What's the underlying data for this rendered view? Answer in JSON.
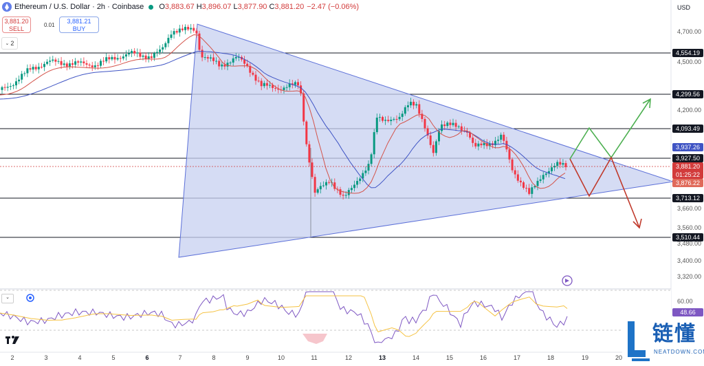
{
  "header": {
    "symbol": "Ethereum / U.S. Dollar · 2h · Coinbase",
    "o_label": "O",
    "o_value": "3,883.67",
    "h_label": "H",
    "h_value": "3,896.07",
    "l_label": "L",
    "l_value": "3,877.90",
    "c_label": "C",
    "c_value": "3,881.20",
    "change": "−2.47 (−0.06%)",
    "status_color": "#089981"
  },
  "trade": {
    "sell_price": "3,881.20",
    "sell_label": "SELL",
    "spread": "0.01",
    "buy_price": "3,881.21",
    "buy_label": "BUY"
  },
  "toolbar": {
    "collapse_count": "2"
  },
  "price_axis": {
    "currency": "USD",
    "labels": [
      "4,700.00",
      "4,500.00",
      "4,200.00",
      "3,660.00",
      "3,560.00",
      "3,480.00",
      "3,400.00",
      "3,320.00"
    ],
    "hline_badges": [
      "4,554.19",
      "4,299.56",
      "4,093.49",
      "3,927.50",
      "3,713.12",
      "3,510.44"
    ],
    "ma_badge": "3,937.26",
    "last_price": "3,881.20",
    "countdown": "01:25:22",
    "other_badge": "3,876.22"
  },
  "rsi": {
    "level_label": "60.00",
    "value": "48.66"
  },
  "time_axis": {
    "labels": [
      "2",
      "3",
      "4",
      "5",
      "6",
      "7",
      "8",
      "9",
      "10",
      "11",
      "12",
      "13",
      "14",
      "15",
      "16",
      "17",
      "18",
      "19",
      "20"
    ]
  },
  "colors": {
    "up": "#089981",
    "down": "#f23645",
    "triangle_fill": "#c7d0f0",
    "triangle_stroke": "#5b6fd8",
    "ma_fast": "#d4534a",
    "ma_slow": "#3f54c4",
    "green_path": "#4caf50",
    "red_path": "#c0392b",
    "rsi_line": "#7e57c2",
    "rsi_signal": "#f5c242"
  },
  "watermark": {
    "brand_cn": "链懂",
    "brand_url": "NEATDOWN.COM",
    "tv_logo": "TV"
  }
}
